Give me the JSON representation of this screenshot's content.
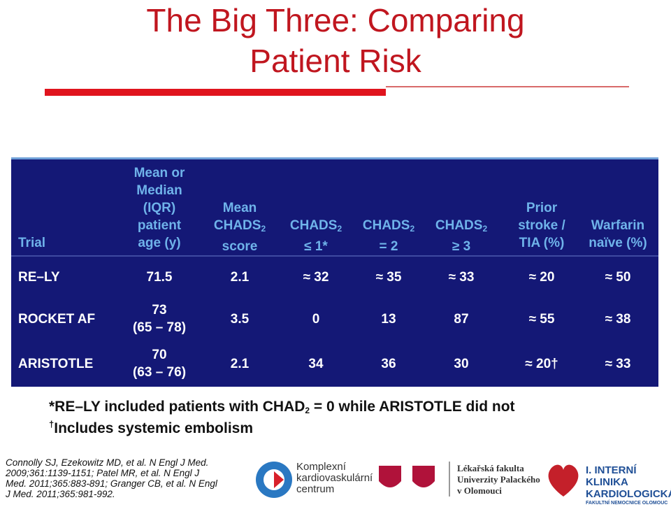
{
  "header": {
    "title_lines": [
      "The Big Three: Comparing",
      "Patient Risk"
    ]
  },
  "table": {
    "headers": [
      [
        "Trial"
      ],
      [
        "Mean or",
        "Median",
        "(IQR)",
        "patient",
        "age (y)"
      ],
      [
        "Mean",
        {
          "base": "CHADS",
          "sub": "2"
        },
        "score"
      ],
      [
        {
          "base": "CHADS",
          "sub": "2"
        },
        "≤ 1*"
      ],
      [
        {
          "base": "CHADS",
          "sub": "2"
        },
        "= 2"
      ],
      [
        {
          "base": "CHADS",
          "sub": "2"
        },
        "≥ 3"
      ],
      [
        "Prior",
        "stroke /",
        "TIA (%)"
      ],
      [
        "Warfarin",
        "naïve (%)"
      ]
    ],
    "rows": [
      [
        "RE–LY",
        "71.5",
        "2.1",
        "≈ 32",
        "≈ 35",
        "≈ 33",
        "≈ 20",
        "≈ 50"
      ],
      [
        "ROCKET AF",
        [
          "73",
          "(65 – 78)"
        ],
        "3.5",
        "0",
        "13",
        "87",
        "≈ 55",
        "≈ 38"
      ],
      [
        "ARISTOTLE",
        [
          "70",
          "(63 – 76)"
        ],
        "2.1",
        "34",
        "36",
        "30",
        "≈ 20†",
        "≈ 33"
      ]
    ]
  },
  "footnotes": {
    "first": {
      "before": "*RE–LY included patients with CHAD",
      "sub": "2",
      "after": " = 0 while ARISTOTLE did not"
    },
    "second": {
      "mark": "†",
      "text": "Includes systemic embolism"
    }
  },
  "references": [
    "Connolly SJ, Ezekowitz MD, et al. N Engl J Med.",
    "2009;361:1139-1151; Patel MR, et al. N Engl J",
    "Med. 2011;365:883-891; Granger CB, et al. N Engl",
    "J Med. 2011;365:981-992."
  ],
  "logos": {
    "kkc": [
      "Komplexní",
      "kardiovaskulární",
      "centrum"
    ],
    "lf": [
      "Lékařská fakulta",
      "Univerzity Palackého",
      "v Olomouci"
    ],
    "klinika": [
      "I. INTERNÍ KLINIKA",
      "KARDIOLOGICKÁ",
      "FAKULTNÍ NEMOCNICE OLOMOUC"
    ]
  }
}
